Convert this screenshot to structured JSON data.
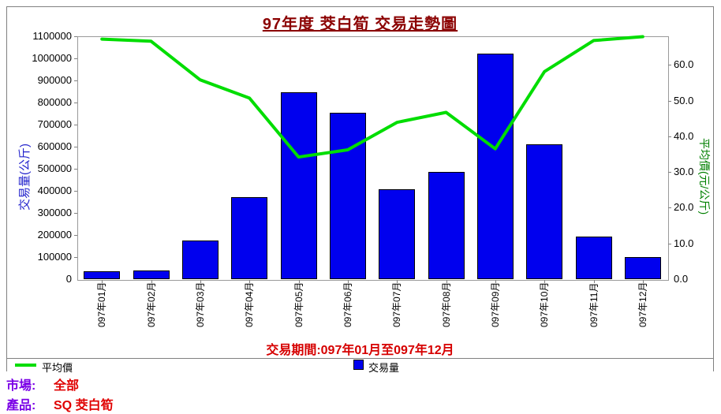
{
  "title": "97年度 茭白筍 交易走勢圖",
  "period_note": "交易期間:097年01月至097年12月",
  "legend": [
    {
      "label": "平均價",
      "swatch": "line-swatch",
      "color": "#00DD00"
    },
    {
      "label": "交易量",
      "swatch": "box-swatch",
      "color": "#0000EE"
    }
  ],
  "footer": {
    "market_label": "市場:",
    "market_value": "全部",
    "product_label": "產品:",
    "product_value": "SQ 茭白筍"
  },
  "colors": {
    "title": "#8B0000",
    "period_note": "#D60000",
    "bar_fill": "#0000EE",
    "bar_border": "#000000",
    "line": "#00DD00",
    "left_axis_label": "#2222CC",
    "right_axis_label": "#008000",
    "footer_label": "#7A00E6",
    "footer_value": "#E00000",
    "frame_border": "#808080"
  },
  "chart_data": {
    "type": "bar+line",
    "categories": [
      "097年01月",
      "097年02月",
      "097年03月",
      "097年04月",
      "097年05月",
      "097年06月",
      "097年07月",
      "097年08月",
      "097年09月",
      "097年10月",
      "097年11月",
      "097年12月"
    ],
    "series": [
      {
        "name": "交易量",
        "chart": "bar",
        "axis": "left",
        "color": "#0000EE",
        "values": [
          36000,
          40000,
          176000,
          370000,
          848000,
          755000,
          407000,
          486000,
          1020000,
          611000,
          193000,
          100000
        ]
      },
      {
        "name": "平均價",
        "chart": "line",
        "axis": "right",
        "color": "#00DD00",
        "values": [
          67.2,
          66.6,
          55.8,
          50.7,
          34.2,
          36.2,
          43.9,
          46.7,
          36.5,
          58.1,
          66.8,
          67.9
        ]
      }
    ],
    "left_axis": {
      "label": "交易量(公斤)",
      "min": 0,
      "max": 1100000,
      "step": 100000,
      "tick_labels": [
        "0",
        "100000",
        "200000",
        "300000",
        "400000",
        "500000",
        "600000",
        "700000",
        "800000",
        "900000",
        "1000000",
        "1100000"
      ]
    },
    "right_axis": {
      "label": "平均價(元/公斤)",
      "min": 0,
      "step": 10,
      "plot_max": 68,
      "tick_labels": [
        "0.0",
        "10.0",
        "20.0",
        "30.0",
        "40.0",
        "50.0",
        "60.0"
      ]
    },
    "grid": false,
    "legend_position": "bottom",
    "title": "97年度 茭白筍 交易走勢圖"
  }
}
